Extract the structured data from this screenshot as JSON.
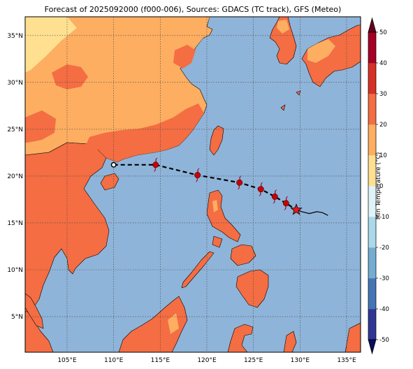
{
  "title": "Forecast of 2025092000 (f000-006), Sources: GDACS (TC track), GFS (Meteo)",
  "map": {
    "lon_range": [
      100.5,
      136.5
    ],
    "lat_range": [
      1.2,
      37.0
    ],
    "lon_ticks": [
      105,
      110,
      115,
      120,
      125,
      130,
      135
    ],
    "lon_tick_labels": [
      "105°E",
      "110°E",
      "115°E",
      "120°E",
      "125°E",
      "130°E",
      "135°E"
    ],
    "lat_ticks": [
      5,
      10,
      15,
      20,
      25,
      30,
      35
    ],
    "lat_tick_labels": [
      "5°N",
      "10°N",
      "15°N",
      "20°N",
      "25°N",
      "30°N",
      "35°N"
    ],
    "ocean_color": "#8fb4d9"
  },
  "colorbar": {
    "label": "Min Temperature (°C)",
    "ticks": [
      -50,
      -40,
      -30,
      -20,
      -10,
      0,
      10,
      20,
      30,
      40,
      50
    ],
    "tick_labels": [
      "-50",
      "-40",
      "-30",
      "-20",
      "-10",
      "0",
      "10",
      "20",
      "30",
      "40",
      "50"
    ],
    "colors": [
      "#313695",
      "#4575b4",
      "#74add1",
      "#abd9e9",
      "#e0f3f8",
      "#fee090",
      "#fdae61",
      "#f46d43",
      "#d73027",
      "#a50026"
    ]
  },
  "track": {
    "marker_color": "#cc0000",
    "forecast_points": [
      [
        110.0,
        21.2
      ],
      [
        114.5,
        21.2
      ],
      [
        119.0,
        20.1
      ],
      [
        123.5,
        19.3
      ],
      [
        125.8,
        18.6
      ],
      [
        127.3,
        17.8
      ],
      [
        128.5,
        17.1
      ],
      [
        129.6,
        16.4
      ]
    ],
    "symbol_points": [
      [
        114.5,
        21.2
      ],
      [
        119.0,
        20.1
      ],
      [
        123.5,
        19.3
      ],
      [
        125.8,
        18.6
      ],
      [
        127.3,
        17.8
      ],
      [
        128.5,
        17.1
      ]
    ],
    "landfall_point": [
      110.0,
      21.2
    ],
    "current_position": [
      129.6,
      16.4
    ],
    "past_track": [
      [
        129.6,
        16.4
      ],
      [
        130.2,
        16.2
      ],
      [
        131.0,
        16.0
      ],
      [
        131.8,
        16.2
      ],
      [
        132.4,
        16.1
      ],
      [
        133.0,
        15.8
      ]
    ]
  }
}
